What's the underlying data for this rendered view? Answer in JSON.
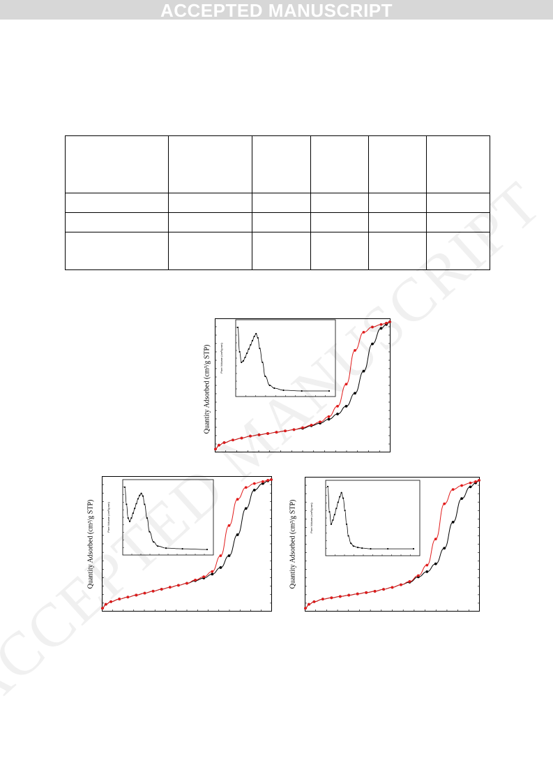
{
  "banner": {
    "text": "ACCEPTED MANUSCRIPT"
  },
  "watermark": {
    "text": "ACCEPTED MANUSCRIPT"
  },
  "table": {
    "rows": [
      [
        "",
        "",
        "",
        "",
        "",
        ""
      ],
      [
        "",
        "",
        "",
        "",
        "",
        ""
      ],
      [
        "",
        "",
        "",
        "",
        "",
        ""
      ],
      [
        "",
        "",
        "",
        "",
        "",
        ""
      ]
    ]
  },
  "charts": {
    "y_axis_label": "Quantity Adsorbed (cm³/g STP)",
    "inset_y_label": "Pore Volume (cm³/g·nm)",
    "colors": {
      "adsorption": "#000000",
      "desorption": "#e11b1b"
    }
  },
  "chart_data": [
    {
      "type": "line",
      "title": "",
      "xlabel": "",
      "ylabel": "Quantity Adsorbed (cm³/g STP)",
      "x": [
        0.0,
        0.02,
        0.05,
        0.1,
        0.15,
        0.2,
        0.25,
        0.3,
        0.35,
        0.4,
        0.45,
        0.5,
        0.55,
        0.6,
        0.65,
        0.7,
        0.75,
        0.8,
        0.85,
        0.9,
        0.95,
        0.98,
        1.0
      ],
      "series": [
        {
          "values": [
            0.02,
            0.05,
            0.07,
            0.09,
            0.105,
            0.12,
            0.13,
            0.14,
            0.15,
            0.16,
            0.17,
            0.18,
            0.2,
            0.22,
            0.25,
            0.29,
            0.35,
            0.45,
            0.62,
            0.83,
            0.95,
            0.98,
            1.0
          ]
        },
        {
          "values": [
            0.02,
            0.05,
            0.07,
            0.09,
            0.105,
            0.12,
            0.13,
            0.14,
            0.15,
            0.16,
            0.17,
            0.185,
            0.205,
            0.23,
            0.27,
            0.35,
            0.52,
            0.78,
            0.92,
            0.96,
            0.98,
            0.99,
            1.0
          ]
        }
      ],
      "inset": {
        "type": "line",
        "x": [
          0.0,
          0.02,
          0.04,
          0.06,
          0.08,
          0.1,
          0.12,
          0.14,
          0.16,
          0.18,
          0.2,
          0.22,
          0.24,
          0.27,
          0.3,
          0.35,
          0.4,
          0.5,
          0.7,
          1.0
        ],
        "values": [
          0.95,
          0.6,
          0.45,
          0.47,
          0.52,
          0.58,
          0.64,
          0.7,
          0.76,
          0.82,
          0.86,
          0.8,
          0.65,
          0.45,
          0.25,
          0.12,
          0.08,
          0.05,
          0.04,
          0.04
        ]
      }
    },
    {
      "type": "line",
      "title": "",
      "xlabel": "",
      "ylabel": "Quantity Adsorbed (cm³/g STP)",
      "x": [
        0.0,
        0.02,
        0.05,
        0.1,
        0.15,
        0.2,
        0.25,
        0.3,
        0.35,
        0.4,
        0.45,
        0.5,
        0.55,
        0.6,
        0.65,
        0.7,
        0.75,
        0.8,
        0.85,
        0.9,
        0.95,
        0.98,
        1.0
      ],
      "series": [
        {
          "values": [
            0.02,
            0.05,
            0.07,
            0.09,
            0.105,
            0.12,
            0.135,
            0.15,
            0.165,
            0.18,
            0.195,
            0.21,
            0.23,
            0.25,
            0.28,
            0.33,
            0.42,
            0.58,
            0.78,
            0.92,
            0.97,
            0.99,
            1.0
          ]
        },
        {
          "values": [
            0.02,
            0.05,
            0.07,
            0.09,
            0.105,
            0.12,
            0.135,
            0.15,
            0.165,
            0.18,
            0.195,
            0.21,
            0.235,
            0.26,
            0.3,
            0.42,
            0.65,
            0.85,
            0.94,
            0.97,
            0.985,
            0.995,
            1.0
          ]
        }
      ],
      "inset": {
        "type": "line",
        "x": [
          0.0,
          0.02,
          0.04,
          0.06,
          0.08,
          0.1,
          0.12,
          0.14,
          0.16,
          0.18,
          0.2,
          0.22,
          0.24,
          0.27,
          0.3,
          0.35,
          0.4,
          0.5,
          0.7,
          1.0
        ],
        "values": [
          0.95,
          0.7,
          0.5,
          0.45,
          0.5,
          0.57,
          0.64,
          0.71,
          0.78,
          0.83,
          0.86,
          0.82,
          0.7,
          0.5,
          0.3,
          0.15,
          0.09,
          0.06,
          0.05,
          0.04
        ]
      }
    },
    {
      "type": "line",
      "title": "",
      "xlabel": "",
      "ylabel": "Quantity Adsorbed (cm³/g STP)",
      "x": [
        0.0,
        0.02,
        0.05,
        0.1,
        0.15,
        0.2,
        0.25,
        0.3,
        0.35,
        0.4,
        0.45,
        0.5,
        0.55,
        0.6,
        0.65,
        0.7,
        0.75,
        0.8,
        0.85,
        0.9,
        0.95,
        0.98,
        1.0
      ],
      "series": [
        {
          "values": [
            0.02,
            0.05,
            0.07,
            0.09,
            0.1,
            0.11,
            0.12,
            0.13,
            0.14,
            0.15,
            0.165,
            0.18,
            0.2,
            0.22,
            0.26,
            0.3,
            0.36,
            0.48,
            0.68,
            0.86,
            0.95,
            0.98,
            1.0
          ]
        },
        {
          "values": [
            0.02,
            0.05,
            0.07,
            0.09,
            0.1,
            0.11,
            0.12,
            0.13,
            0.14,
            0.15,
            0.165,
            0.18,
            0.2,
            0.225,
            0.27,
            0.35,
            0.55,
            0.82,
            0.93,
            0.96,
            0.98,
            0.99,
            1.0
          ]
        }
      ],
      "inset": {
        "type": "line",
        "x": [
          0.0,
          0.02,
          0.04,
          0.06,
          0.08,
          0.1,
          0.12,
          0.14,
          0.16,
          0.18,
          0.2,
          0.22,
          0.24,
          0.27,
          0.3,
          0.35,
          0.4,
          0.5,
          0.7,
          1.0
        ],
        "values": [
          0.97,
          0.6,
          0.42,
          0.48,
          0.56,
          0.65,
          0.74,
          0.82,
          0.88,
          0.8,
          0.62,
          0.42,
          0.25,
          0.14,
          0.1,
          0.08,
          0.07,
          0.06,
          0.06,
          0.06
        ]
      }
    }
  ]
}
